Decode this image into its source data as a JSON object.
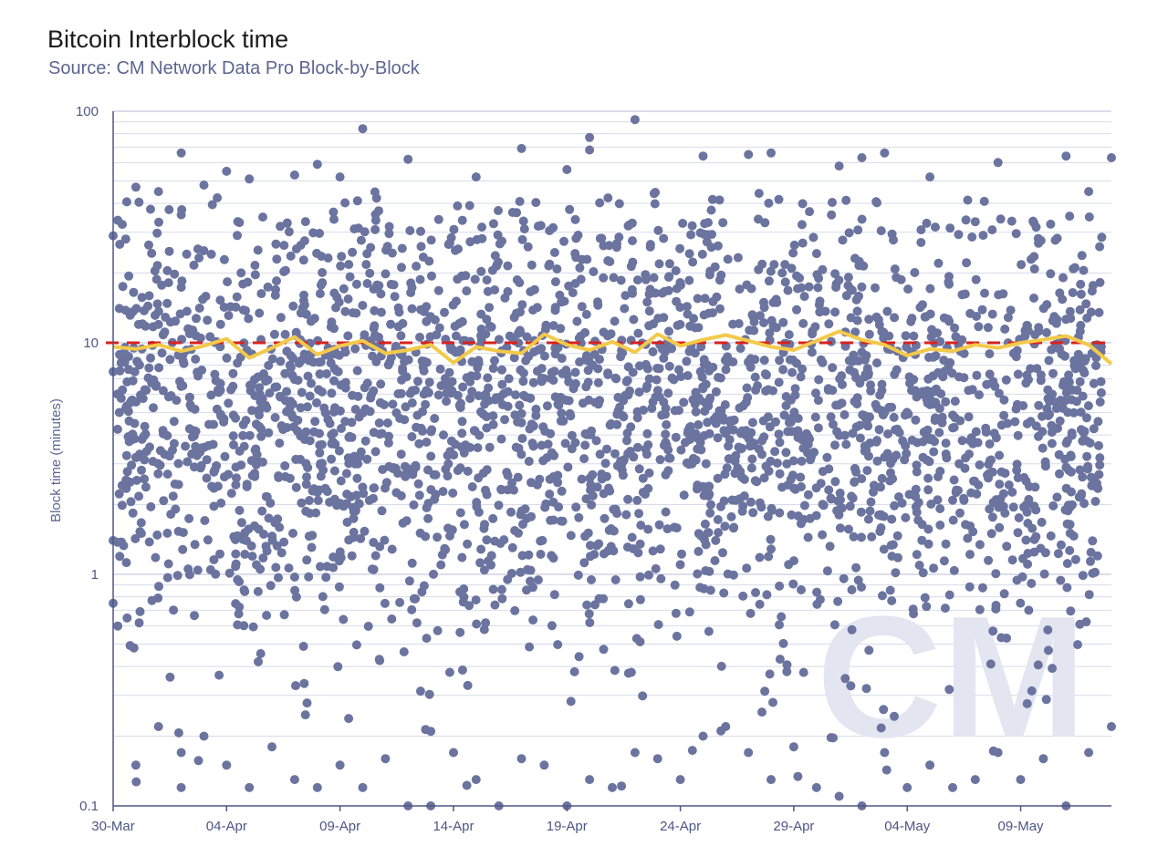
{
  "chart_data": {
    "type": "scatter",
    "title": "Bitcoin Interblock time",
    "subtitle": "Source: CM Network Data Pro Block-by-Block",
    "xlabel": "",
    "ylabel": "Block time (minutes)",
    "y_scale": "log",
    "ylim": [
      0.1,
      100
    ],
    "y_ticks": [
      "0.1",
      "1",
      "10",
      "100"
    ],
    "xlim": [
      "2021-03-30",
      "2021-05-13"
    ],
    "x_ticks": [
      "30-Mar",
      "04-Apr",
      "09-Apr",
      "14-Apr",
      "19-Apr",
      "24-Apr",
      "29-Apr",
      "04-May",
      "09-May"
    ],
    "watermark": "CM",
    "reference_line": {
      "y": 10,
      "style": "dashed",
      "color": "#d9211d"
    },
    "series": [
      {
        "kind": "scatter",
        "color": "#6b739f",
        "points": [
          [
            "2021-03-30",
            29
          ],
          [
            "2021-03-30",
            7.5
          ],
          [
            "2021-03-30",
            0.75
          ],
          [
            "2021-03-30",
            1.4
          ],
          [
            "2021-03-31",
            47
          ],
          [
            "2021-03-31",
            0.15
          ],
          [
            "2021-03-31",
            3.2
          ],
          [
            "2021-04-01",
            0.22
          ],
          [
            "2021-04-01",
            45
          ],
          [
            "2021-04-01",
            12
          ],
          [
            "2021-04-02",
            66
          ],
          [
            "2021-04-02",
            0.12
          ],
          [
            "2021-04-02",
            0.17
          ],
          [
            "2021-04-03",
            48
          ],
          [
            "2021-04-03",
            0.2
          ],
          [
            "2021-04-04",
            55
          ],
          [
            "2021-04-04",
            0.15
          ],
          [
            "2021-04-05",
            0.12
          ],
          [
            "2021-04-05",
            51
          ],
          [
            "2021-04-06",
            0.18
          ],
          [
            "2021-04-07",
            53
          ],
          [
            "2021-04-07",
            0.13
          ],
          [
            "2021-04-08",
            59
          ],
          [
            "2021-04-08",
            0.12
          ],
          [
            "2021-04-09",
            0.15
          ],
          [
            "2021-04-09",
            52
          ],
          [
            "2021-04-10",
            84
          ],
          [
            "2021-04-10",
            0.12
          ],
          [
            "2021-04-11",
            0.16
          ],
          [
            "2021-04-12",
            62
          ],
          [
            "2021-04-12",
            0.1
          ],
          [
            "2021-04-13",
            0.21
          ],
          [
            "2021-04-13",
            0.1
          ],
          [
            "2021-04-14",
            0.17
          ],
          [
            "2021-04-15",
            52
          ],
          [
            "2021-04-15",
            0.13
          ],
          [
            "2021-04-16",
            0.1
          ],
          [
            "2021-04-17",
            69
          ],
          [
            "2021-04-17",
            0.16
          ],
          [
            "2021-04-18",
            0.15
          ],
          [
            "2021-04-19",
            56
          ],
          [
            "2021-04-19",
            0.1
          ],
          [
            "2021-04-20",
            68
          ],
          [
            "2021-04-20",
            77
          ],
          [
            "2021-04-20",
            0.13
          ],
          [
            "2021-04-21",
            0.12
          ],
          [
            "2021-04-22",
            92
          ],
          [
            "2021-04-22",
            0.17
          ],
          [
            "2021-04-23",
            0.16
          ],
          [
            "2021-04-24",
            0.13
          ],
          [
            "2021-04-25",
            64
          ],
          [
            "2021-04-25",
            0.2
          ],
          [
            "2021-04-26",
            0.22
          ],
          [
            "2021-04-27",
            0.17
          ],
          [
            "2021-04-27",
            65
          ],
          [
            "2021-04-28",
            66
          ],
          [
            "2021-04-28",
            0.13
          ],
          [
            "2021-04-29",
            0.18
          ],
          [
            "2021-04-30",
            0.12
          ],
          [
            "2021-05-01",
            58
          ],
          [
            "2021-05-01",
            0.11
          ],
          [
            "2021-05-02",
            63
          ],
          [
            "2021-05-02",
            0.1
          ],
          [
            "2021-05-03",
            66
          ],
          [
            "2021-05-03",
            0.17
          ],
          [
            "2021-05-04",
            0.12
          ],
          [
            "2021-05-05",
            52
          ],
          [
            "2021-05-05",
            0.15
          ],
          [
            "2021-05-06",
            0.12
          ],
          [
            "2021-05-07",
            0.13
          ],
          [
            "2021-05-08",
            60
          ],
          [
            "2021-05-08",
            0.17
          ],
          [
            "2021-05-09",
            0.13
          ],
          [
            "2021-05-10",
            0.16
          ],
          [
            "2021-05-11",
            64
          ],
          [
            "2021-05-11",
            0.1
          ],
          [
            "2021-05-12",
            0.17
          ],
          [
            "2021-05-12",
            45
          ],
          [
            "2021-05-13",
            63
          ],
          [
            "2021-05-13",
            0.22
          ]
        ]
      },
      {
        "kind": "line",
        "color": "#f3c94a",
        "points": [
          [
            "2021-03-30",
            9.6
          ],
          [
            "2021-03-31",
            9.4
          ],
          [
            "2021-04-01",
            9.8
          ],
          [
            "2021-04-02",
            9.2
          ],
          [
            "2021-04-03",
            9.7
          ],
          [
            "2021-04-04",
            10.4
          ],
          [
            "2021-04-05",
            8.6
          ],
          [
            "2021-04-06",
            9.5
          ],
          [
            "2021-04-07",
            10.6
          ],
          [
            "2021-04-08",
            8.9
          ],
          [
            "2021-04-09",
            9.7
          ],
          [
            "2021-04-10",
            10.2
          ],
          [
            "2021-04-11",
            9.0
          ],
          [
            "2021-04-12",
            9.3
          ],
          [
            "2021-04-13",
            9.8
          ],
          [
            "2021-04-14",
            8.2
          ],
          [
            "2021-04-15",
            9.6
          ],
          [
            "2021-04-16",
            9.2
          ],
          [
            "2021-04-17",
            9.0
          ],
          [
            "2021-04-18",
            10.9
          ],
          [
            "2021-04-19",
            9.8
          ],
          [
            "2021-04-20",
            9.3
          ],
          [
            "2021-04-21",
            10.1
          ],
          [
            "2021-04-22",
            9.1
          ],
          [
            "2021-04-23",
            10.9
          ],
          [
            "2021-04-24",
            9.7
          ],
          [
            "2021-04-25",
            10.3
          ],
          [
            "2021-04-26",
            10.8
          ],
          [
            "2021-04-27",
            10.2
          ],
          [
            "2021-04-28",
            9.6
          ],
          [
            "2021-04-29",
            9.3
          ],
          [
            "2021-04-30",
            10.2
          ],
          [
            "2021-05-01",
            11.2
          ],
          [
            "2021-05-02",
            10.3
          ],
          [
            "2021-05-03",
            9.8
          ],
          [
            "2021-05-04",
            8.8
          ],
          [
            "2021-05-05",
            9.4
          ],
          [
            "2021-05-06",
            9.2
          ],
          [
            "2021-05-07",
            9.8
          ],
          [
            "2021-05-08",
            9.5
          ],
          [
            "2021-05-09",
            10.0
          ],
          [
            "2021-05-10",
            10.3
          ],
          [
            "2021-05-11",
            10.7
          ],
          [
            "2021-05-12",
            9.8
          ],
          [
            "2021-05-13",
            8.1
          ]
        ]
      }
    ]
  }
}
